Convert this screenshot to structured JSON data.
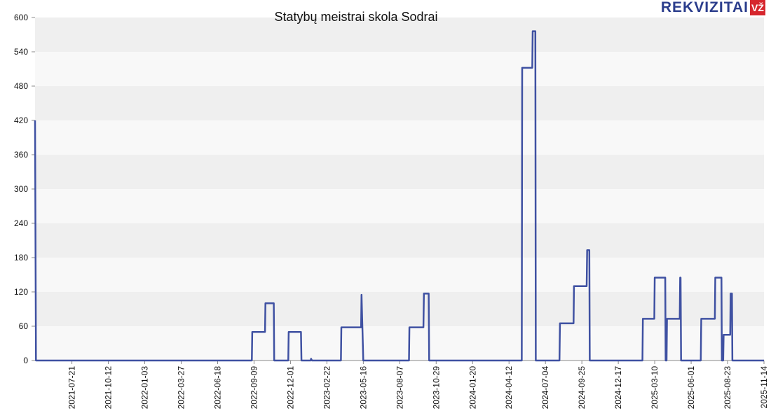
{
  "branding": {
    "logo_text": "REKVIZITAI",
    "logo_badge": "VŽ"
  },
  "colors": {
    "line": "#3f51a2",
    "band_light": "#f8f8f8",
    "band_dark": "#efefef"
  },
  "chart_data": {
    "type": "line",
    "title": "Statybų meistrai skola Sodrai",
    "xlabel": "",
    "ylabel": "",
    "ylim": [
      0,
      600
    ],
    "yticks": [
      0,
      60,
      120,
      180,
      240,
      300,
      360,
      420,
      480,
      540,
      600
    ],
    "xlim": [
      "2021-04-28",
      "2025-11-14"
    ],
    "xticks": [
      "2021-07-21",
      "2021-10-12",
      "2022-01-03",
      "2022-03-27",
      "2022-06-18",
      "2022-09-09",
      "2022-12-01",
      "2023-02-22",
      "2023-05-16",
      "2023-08-07",
      "2023-10-29",
      "2024-01-20",
      "2024-04-12",
      "2024-07-04",
      "2024-09-25",
      "2024-12-17",
      "2025-03-10",
      "2025-06-01",
      "2025-08-23",
      "2025-11-14"
    ],
    "grid": "horizontal bands",
    "legend": "none",
    "series": [
      {
        "points": [
          [
            "2021-04-28",
            420
          ],
          [
            "2021-04-30",
            0
          ],
          [
            "2022-09-04",
            0
          ],
          [
            "2022-09-05",
            50
          ],
          [
            "2022-10-04",
            50
          ],
          [
            "2022-10-05",
            100
          ],
          [
            "2022-10-24",
            100
          ],
          [
            "2022-10-25",
            0
          ],
          [
            "2022-11-26",
            0
          ],
          [
            "2022-11-27",
            50
          ],
          [
            "2022-12-25",
            50
          ],
          [
            "2022-12-26",
            0
          ],
          [
            "2023-01-16",
            0
          ],
          [
            "2023-01-17",
            3
          ],
          [
            "2023-01-19",
            0
          ],
          [
            "2023-03-26",
            0
          ],
          [
            "2023-03-27",
            58
          ],
          [
            "2023-05-11",
            58
          ],
          [
            "2023-05-12",
            115
          ],
          [
            "2023-05-16",
            0
          ],
          [
            "2023-08-28",
            0
          ],
          [
            "2023-08-29",
            58
          ],
          [
            "2023-09-30",
            58
          ],
          [
            "2023-10-01",
            117
          ],
          [
            "2023-10-12",
            117
          ],
          [
            "2023-10-13",
            0
          ],
          [
            "2024-05-11",
            0
          ],
          [
            "2024-05-12",
            512
          ],
          [
            "2024-06-04",
            512
          ],
          [
            "2024-06-05",
            576
          ],
          [
            "2024-06-11",
            576
          ],
          [
            "2024-06-12",
            0
          ],
          [
            "2024-08-05",
            0
          ],
          [
            "2024-08-06",
            65
          ],
          [
            "2024-09-06",
            65
          ],
          [
            "2024-09-07",
            130
          ],
          [
            "2024-10-06",
            130
          ],
          [
            "2024-10-07",
            193
          ],
          [
            "2024-10-12",
            193
          ],
          [
            "2024-10-13",
            0
          ],
          [
            "2025-02-10",
            0
          ],
          [
            "2025-02-11",
            73
          ],
          [
            "2025-03-09",
            73
          ],
          [
            "2025-03-10",
            145
          ],
          [
            "2025-04-03",
            145
          ],
          [
            "2025-04-04",
            0
          ],
          [
            "2025-04-06",
            0
          ],
          [
            "2025-04-07",
            73
          ],
          [
            "2025-05-06",
            73
          ],
          [
            "2025-05-07",
            145
          ],
          [
            "2025-05-08",
            145
          ],
          [
            "2025-05-09",
            0
          ],
          [
            "2025-06-23",
            0
          ],
          [
            "2025-06-24",
            73
          ],
          [
            "2025-07-25",
            73
          ],
          [
            "2025-07-26",
            145
          ],
          [
            "2025-08-09",
            145
          ],
          [
            "2025-08-10",
            0
          ],
          [
            "2025-08-13",
            0
          ],
          [
            "2025-08-14",
            45
          ],
          [
            "2025-08-29",
            45
          ],
          [
            "2025-08-30",
            117
          ],
          [
            "2025-09-02",
            117
          ],
          [
            "2025-09-03",
            0
          ],
          [
            "2025-11-14",
            0
          ]
        ]
      }
    ]
  }
}
